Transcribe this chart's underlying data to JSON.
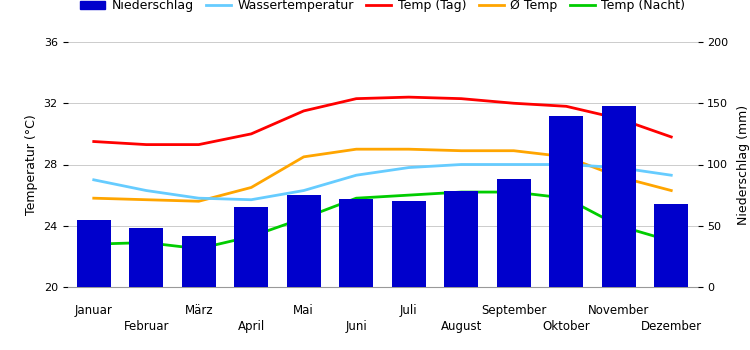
{
  "months": [
    "Januar",
    "Februar",
    "März",
    "April",
    "Mai",
    "Juni",
    "Juli",
    "August",
    "September",
    "Oktober",
    "November",
    "Dezember"
  ],
  "niederschlag": [
    55,
    48,
    42,
    65,
    75,
    72,
    70,
    78,
    88,
    140,
    148,
    68
  ],
  "wassertemperatur": [
    27.0,
    26.3,
    25.8,
    25.7,
    26.3,
    27.3,
    27.8,
    28.0,
    28.0,
    28.0,
    27.8,
    27.3
  ],
  "temp_tag": [
    29.5,
    29.3,
    29.3,
    30.0,
    31.5,
    32.3,
    32.4,
    32.3,
    32.0,
    31.8,
    31.0,
    29.8
  ],
  "avg_temp": [
    25.8,
    25.7,
    25.6,
    26.5,
    28.5,
    29.0,
    29.0,
    28.9,
    28.9,
    28.5,
    27.2,
    26.3
  ],
  "temp_nacht": [
    22.8,
    22.9,
    22.5,
    23.3,
    24.5,
    25.8,
    26.0,
    26.2,
    26.2,
    25.8,
    24.0,
    23.0
  ],
  "bar_color": "#0000CC",
  "line_wassertemp_color": "#66CCFF",
  "line_tag_color": "#FF0000",
  "line_avg_color": "#FFA500",
  "line_nacht_color": "#00CC00",
  "ylim_left": [
    20,
    36
  ],
  "ylim_right": [
    0,
    200
  ],
  "yticks_left": [
    20,
    24,
    28,
    32,
    36
  ],
  "yticks_right": [
    0,
    50,
    100,
    150,
    200
  ],
  "ylabel_left": "Temperatur (°C)",
  "ylabel_right": "Niederschlag (mm)",
  "legend_labels": [
    "Niederschlag",
    "Wassertemperatur",
    "Temp (Tag)",
    "Ø Temp",
    "Temp (Nacht)"
  ],
  "background_color": "#FFFFFF",
  "grid_color": "#CCCCCC"
}
